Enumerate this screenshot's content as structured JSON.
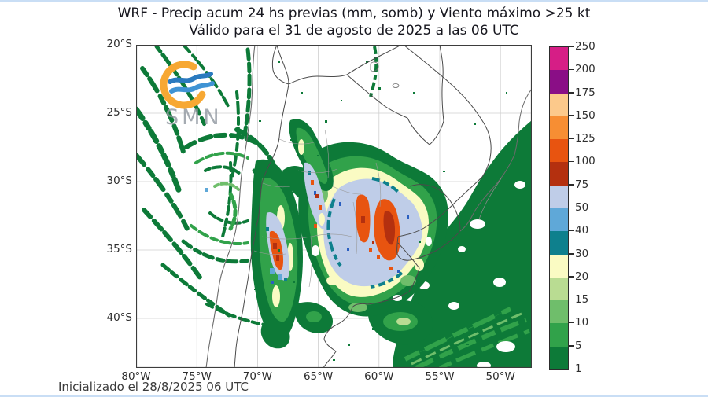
{
  "header": {
    "title_line1": "WRF - Precip acum 24 hs previas (mm, somb) y Viento máximo >25 kt",
    "title_line2": "Válido para el 31 de agosto de 2025 a las 06 UTC"
  },
  "footer": {
    "initialized": "Inicializado el 28/8/2025 06 UTC"
  },
  "axes": {
    "y_ticks": [
      "20°S",
      "25°S",
      "30°S",
      "35°S",
      "40°S"
    ],
    "x_ticks": [
      "80°W",
      "75°W",
      "70°W",
      "65°W",
      "60°W",
      "55°W",
      "50°W"
    ]
  },
  "colorbar": {
    "unit": "mm",
    "levels": [
      1,
      5,
      10,
      15,
      20,
      30,
      40,
      50,
      75,
      100,
      125,
      150,
      175,
      200,
      250
    ],
    "colors": [
      "#0d7a38",
      "#31a24a",
      "#6fbe6b",
      "#b9dc92",
      "#fafbc3",
      "#0e808d",
      "#5fa8d8",
      "#bfcde8",
      "#b4300f",
      "#e85410",
      "#f78e33",
      "#fcc98b",
      "#8a0e86",
      "#d61e86"
    ]
  },
  "logo": {
    "text": "SMN",
    "ring_color": "#f7a833",
    "wave_dark": "#2a7abf",
    "wave_light": "#3f93d4"
  },
  "chart_data": {
    "type": "heatmap",
    "title": "WRF - Precip acum 24 hs previas (mm, somb) y Viento máximo >25 kt",
    "subtitle": "Válido para el 31 de agosto de 2025 a las 06 UTC",
    "initialized": "28/8/2025 06 UTC",
    "x_axis": {
      "unit": "°W",
      "ticks": [
        80,
        75,
        70,
        65,
        60,
        55,
        50
      ],
      "range": [
        80.2,
        47.6
      ]
    },
    "y_axis": {
      "unit": "°S",
      "ticks": [
        20,
        25,
        30,
        35,
        40
      ],
      "range": [
        20,
        43.6
      ]
    },
    "grid": true,
    "legend_position": "right",
    "colorbar_levels_mm": [
      1,
      5,
      10,
      15,
      20,
      30,
      40,
      50,
      75,
      100,
      125,
      150,
      175,
      200,
      250
    ],
    "colorbar_colors": [
      "#0d7a38",
      "#31a24a",
      "#6fbe6b",
      "#b9dc92",
      "#fafbc3",
      "#0e808d",
      "#5fa8d8",
      "#bfcde8",
      "#b4300f",
      "#e85410",
      "#f78e33",
      "#fcc98b",
      "#8a0e86",
      "#d61e86"
    ],
    "features": [
      {
        "name": "pacific-offshore-spiral",
        "description": "Cyclonic spiral of banded light precipitation over the Pacific",
        "lon_w": [
          80,
          71
        ],
        "lat_s": [
          20,
          36
        ],
        "precip_mm": [
          1,
          10
        ]
      },
      {
        "name": "andes-cuyo-core",
        "description": "Heavy band along the Andes of Cuyo with embedded 75-125 mm cores",
        "lon_w": [
          70.8,
          68.2
        ],
        "lat_s": [
          29,
          38
        ],
        "precip_mm": [
          50,
          125
        ]
      },
      {
        "name": "nw-sierras-band",
        "description": "NE-SW band over NW Argentina with 50-75 mm and isolated 100-125 mm spots",
        "lon_w": [
          66.5,
          64
        ],
        "lat_s": [
          26.5,
          31.5
        ],
        "precip_mm": [
          50,
          125
        ]
      },
      {
        "name": "central-east-argentina-core",
        "description": "Large maximum over central-east Argentina, widespread 50-75 mm with elongated 100-125 mm cores",
        "lon_w": [
          63.5,
          57
        ],
        "lat_s": [
          29,
          35.5
        ],
        "precip_mm": [
          50,
          125
        ]
      },
      {
        "name": "atlantic-swath",
        "description": "Broad 1-10 mm swath over the Atlantic and Río de la Plata",
        "lon_w": [
          57.5,
          47.6
        ],
        "lat_s": [
          30,
          43.6
        ],
        "precip_mm": [
          1,
          10
        ]
      },
      {
        "name": "brazil-bolivia-patches",
        "description": "Scattered 1-5 mm patches near the Brazilian coast and over Bolivia",
        "precip_mm": [
          1,
          5
        ]
      }
    ]
  }
}
